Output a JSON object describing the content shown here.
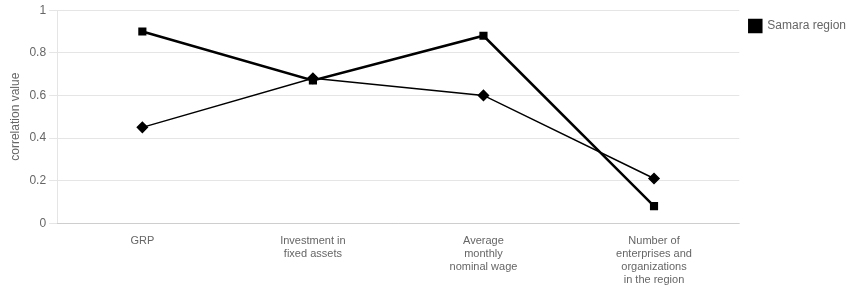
{
  "chart_data": {
    "type": "line",
    "categories": [
      "GRP",
      "Investment in\nfixed assets",
      "Average\nmonthly\nnominal wage",
      "Number of\nenterprises and\norganizations\nin the region"
    ],
    "series": [
      {
        "values": [
          0.45,
          0.68,
          0.6,
          0.21
        ],
        "color": "#000000",
        "marker": "diamond"
      },
      {
        "name": "Samara region",
        "values": [
          0.9,
          0.67,
          0.88,
          0.08
        ],
        "color": "#000000",
        "marker": "square"
      }
    ],
    "ylabel": "correlation value",
    "ylim": [
      0,
      1
    ],
    "yticks": [
      0,
      0.2,
      0.4,
      0.6,
      0.8,
      1
    ],
    "grid": true,
    "legend": "right"
  }
}
